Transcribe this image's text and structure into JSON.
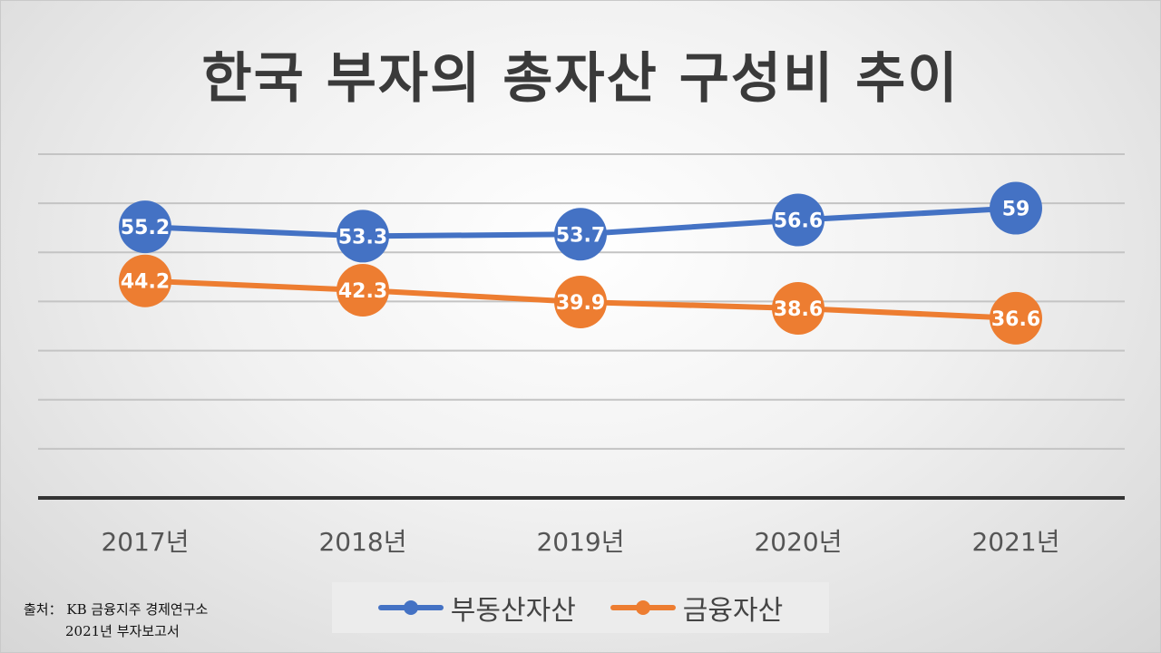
{
  "chart_data": {
    "type": "line",
    "title": "한국 부자의 총자산 구성비 추이",
    "categories": [
      "2017년",
      "2018년",
      "2019년",
      "2020년",
      "2021년"
    ],
    "series": [
      {
        "name": "부동산자산",
        "color": "#4472c4",
        "values": [
          55.2,
          53.3,
          53.7,
          56.6,
          59
        ],
        "labels": [
          "55.2",
          "53.3",
          "53.7",
          "56.6",
          "59"
        ]
      },
      {
        "name": "금융자산",
        "color": "#ed7d31",
        "values": [
          44.2,
          42.3,
          39.9,
          38.6,
          36.6
        ],
        "labels": [
          "44.2",
          "42.3",
          "39.9",
          "38.6",
          "36.6"
        ]
      }
    ],
    "ylim": [
      0,
      70
    ],
    "grid": true,
    "legend_position": "bottom"
  },
  "source": {
    "line1": "출처： KB 금융지주 경제연구소",
    "line2": "2021년 부자보고서"
  }
}
